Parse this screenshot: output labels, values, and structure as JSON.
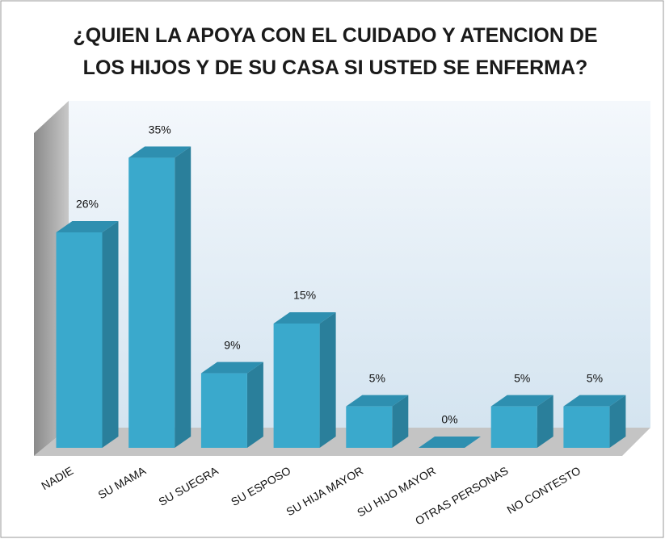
{
  "chart_data": {
    "type": "bar3d",
    "title": "¿QUIEN LA APOYA CON EL CUIDADO Y ATENCION DE LOS HIJOS Y DE SU CASA SI USTED SE ENFERMA?",
    "categories": [
      "NADIE",
      "SU MAMA",
      "SU SUEGRA",
      "SU ESPOSO",
      "SU HIJA MAYOR",
      "SU HIJO MAYOR",
      "OTRAS PERSONAS",
      "NO CONTESTO"
    ],
    "values": [
      26,
      35,
      9,
      15,
      5,
      0,
      5,
      5
    ],
    "value_labels": [
      "26%",
      "35%",
      "9%",
      "15%",
      "5%",
      "0%",
      "5%",
      "5%"
    ],
    "color": "#3aa9cc"
  }
}
